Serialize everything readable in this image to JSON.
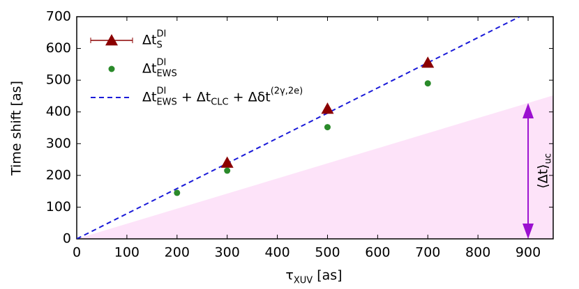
{
  "chart_data": {
    "type": "scatter-line",
    "xlabel": [
      {
        "text": "τ"
      },
      {
        "text": "XUV",
        "shift": "sub"
      },
      {
        "text": " [as]"
      }
    ],
    "ylabel": "Time shift [as]",
    "xlim": [
      0,
      950
    ],
    "ylim": [
      0,
      700
    ],
    "xticks": [
      0,
      100,
      200,
      300,
      400,
      500,
      600,
      700,
      800,
      900
    ],
    "yticks": [
      0,
      100,
      200,
      300,
      400,
      500,
      600,
      700
    ],
    "shade": {
      "x": [
        0,
        950
      ],
      "y": [
        0,
        452
      ],
      "color": "#fde3f9"
    },
    "arrow": {
      "x": 900,
      "y": [
        0,
        428
      ],
      "color": "#9b10d0",
      "label": [
        {
          "text": "⟨Δt⟩"
        },
        {
          "text": "uc",
          "shift": "sub"
        }
      ]
    },
    "series": [
      {
        "name": [
          {
            "text": "Δt"
          },
          {
            "text": "DI",
            "shift": "sup"
          },
          {
            "text": "S",
            "shift": "sub"
          }
        ],
        "marker": "triangle",
        "color": "#8b0000",
        "x": [
          300,
          500,
          700
        ],
        "values": [
          240,
          410,
          555
        ],
        "errors": [
          4,
          4,
          12
        ]
      },
      {
        "name": [
          {
            "text": "Δt"
          },
          {
            "text": "DI",
            "shift": "sup"
          },
          {
            "text": "EWS",
            "shift": "sub"
          }
        ],
        "marker": "circle",
        "color": "#2a8a2a",
        "x": [
          200,
          300,
          500,
          700
        ],
        "values": [
          145,
          215,
          352,
          490
        ]
      },
      {
        "name": [
          {
            "text": "Δt"
          },
          {
            "text": "DI",
            "shift": "sup"
          },
          {
            "text": "EWS",
            "shift": "sub"
          },
          {
            "text": " + Δt"
          },
          {
            "text": "CLC",
            "shift": "sub"
          },
          {
            "text": " + Δδt"
          },
          {
            "text": "(2γ,2e)",
            "shift": "sup"
          }
        ],
        "marker": "dashed",
        "color": "#1a1ad8",
        "x": [
          0,
          883
        ],
        "values": [
          0,
          700
        ]
      }
    ]
  }
}
